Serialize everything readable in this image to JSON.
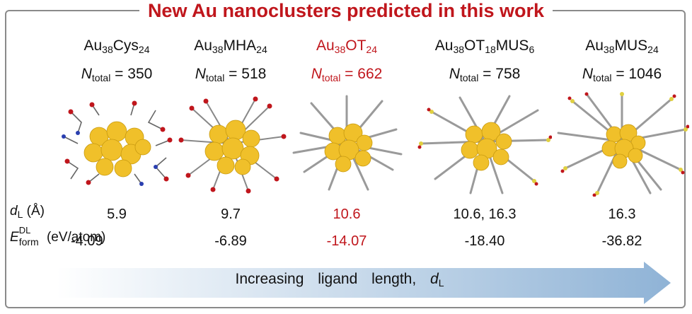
{
  "title": "New Au nanoclusters predicted in this work",
  "colors": {
    "highlight": "#c0161c",
    "gold": "#f0c02a",
    "arrow_start": "#ffffff",
    "arrow_end": "#8fb3d6"
  },
  "row_labels": {
    "dL_symbol": "d",
    "dL_sub": "L",
    "dL_unit": " (Å)",
    "eform_symbol": "E",
    "eform_sub": "form",
    "eform_sup": "DL",
    "eform_unit": " (eV/atom)"
  },
  "ntotal_symbol": "N",
  "ntotal_sub": "total",
  "clusters": [
    {
      "base": "Au",
      "sub1": "38",
      "part2": "Cys",
      "sub2": "24",
      "part3": "",
      "sub3": "",
      "ntotal": "= 350",
      "dL": "5.9",
      "eform": "-4.09",
      "ligand_color": "ball-and-stick",
      "highlight": false
    },
    {
      "base": "Au",
      "sub1": "38",
      "part2": "MHA",
      "sub2": "24",
      "part3": "",
      "sub3": "",
      "ntotal": "= 518",
      "dL": "9.7",
      "eform": "-6.89",
      "ligand_color": "ball-and-stick",
      "highlight": false
    },
    {
      "base": "Au",
      "sub1": "38",
      "part2": "OT",
      "sub2": "24",
      "part3": "",
      "sub3": "",
      "ntotal": "= 662",
      "dL": "10.6",
      "eform": "-14.07",
      "ligand_color": "alkyl",
      "highlight": true
    },
    {
      "base": "Au",
      "sub1": "38",
      "part2": "OT",
      "sub2": "18",
      "part3": "MUS",
      "sub3": "6",
      "ntotal": "= 758",
      "dL": "10.6, 16.3",
      "eform": "-18.40",
      "ligand_color": "alkyl-sulfonate",
      "highlight": false
    },
    {
      "base": "Au",
      "sub1": "38",
      "part2": "MUS",
      "sub2": "24",
      "part3": "",
      "sub3": "",
      "ntotal": "= 1046",
      "dL": "16.3",
      "eform": "-36.82",
      "ligand_color": "alkyl-sulfonate",
      "highlight": false
    }
  ],
  "arrow": {
    "text_1": "Increasing",
    "text_2": "ligand",
    "text_3": "length,",
    "symbol": "d",
    "symbol_sub": "L"
  }
}
